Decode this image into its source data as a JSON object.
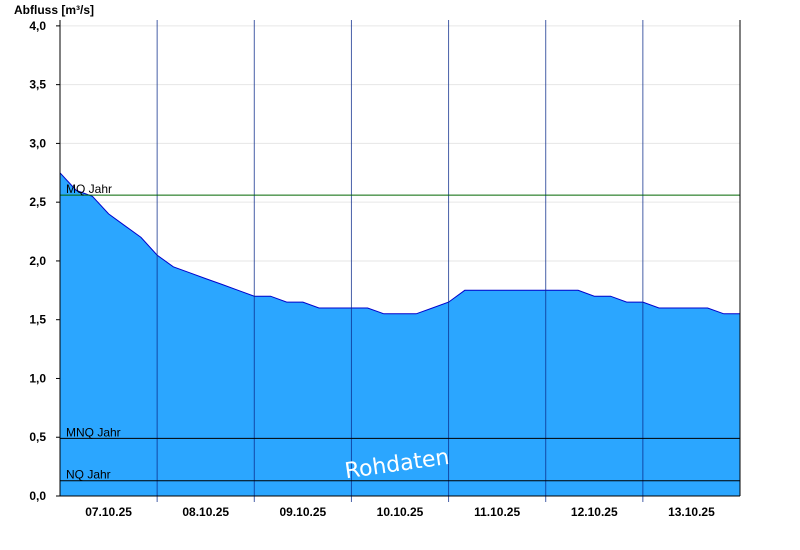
{
  "chart_data": {
    "type": "area",
    "ylabel": "Abfluss [m³/s]",
    "ylim": [
      0,
      4.05
    ],
    "yticks": [
      0,
      0.5,
      1.0,
      1.5,
      2.0,
      2.5,
      3.0,
      3.5,
      4.0
    ],
    "ytick_labels": [
      "0,0",
      "0,5",
      "1,0",
      "1,5",
      "2,0",
      "2,5",
      "3,0",
      "3,5",
      "4,0"
    ],
    "xlim": [
      "2025-10-06 12:00",
      "2025-10-13 12:00"
    ],
    "xticks": [
      "2025-10-07",
      "2025-10-08",
      "2025-10-09",
      "2025-10-10",
      "2025-10-11",
      "2025-10-12",
      "2025-10-13"
    ],
    "xtick_labels": [
      "07.10.25",
      "08.10.25",
      "09.10.25",
      "10.10.25",
      "11.10.25",
      "12.10.25",
      "13.10.25"
    ],
    "grid": true,
    "fill_color": "#2ba6ff",
    "line_color": "#0000cc",
    "series": [
      {
        "x": [
          "2025-10-06 12:00",
          "2025-10-06 16:00",
          "2025-10-06 20:00",
          "2025-10-07 00:00",
          "2025-10-07 04:00",
          "2025-10-07 08:00",
          "2025-10-07 12:00",
          "2025-10-07 16:00",
          "2025-10-07 20:00",
          "2025-10-08 00:00",
          "2025-10-08 04:00",
          "2025-10-08 08:00",
          "2025-10-08 12:00",
          "2025-10-08 16:00",
          "2025-10-08 20:00",
          "2025-10-09 00:00",
          "2025-10-09 04:00",
          "2025-10-09 08:00",
          "2025-10-09 12:00",
          "2025-10-09 16:00",
          "2025-10-09 20:00",
          "2025-10-10 00:00",
          "2025-10-10 04:00",
          "2025-10-10 08:00",
          "2025-10-10 12:00",
          "2025-10-10 16:00",
          "2025-10-10 20:00",
          "2025-10-11 00:00",
          "2025-10-11 04:00",
          "2025-10-11 08:00",
          "2025-10-11 12:00",
          "2025-10-11 16:00",
          "2025-10-11 20:00",
          "2025-10-12 00:00",
          "2025-10-12 04:00",
          "2025-10-12 08:00",
          "2025-10-12 12:00",
          "2025-10-12 16:00",
          "2025-10-12 20:00",
          "2025-10-13 00:00",
          "2025-10-13 04:00",
          "2025-10-13 08:00",
          "2025-10-13 12:00"
        ],
        "values": [
          2.75,
          2.6,
          2.55,
          2.4,
          2.3,
          2.2,
          2.05,
          1.95,
          1.9,
          1.85,
          1.8,
          1.75,
          1.7,
          1.7,
          1.65,
          1.65,
          1.6,
          1.6,
          1.6,
          1.6,
          1.55,
          1.55,
          1.55,
          1.6,
          1.65,
          1.75,
          1.75,
          1.75,
          1.75,
          1.75,
          1.75,
          1.75,
          1.75,
          1.7,
          1.7,
          1.65,
          1.65,
          1.6,
          1.6,
          1.6,
          1.6,
          1.55,
          1.55
        ]
      }
    ],
    "reference_lines": [
      {
        "label": "MQ Jahr",
        "value": 2.56,
        "color": "#006600"
      },
      {
        "label": "MNQ Jahr",
        "value": 0.49,
        "color": "#000000"
      },
      {
        "label": "NQ Jahr",
        "value": 0.13,
        "color": "#000000"
      }
    ],
    "watermark": "Rohdaten"
  }
}
